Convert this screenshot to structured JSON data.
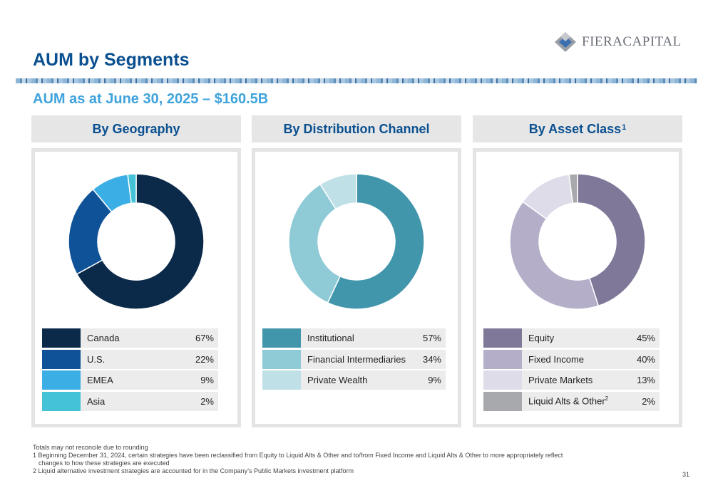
{
  "logo": {
    "text": "FIERACAPITAL"
  },
  "header": {
    "title": "AUM by Segments",
    "subtitle": "AUM as at June 30, 2025 – $160.5B"
  },
  "panels": [
    {
      "title": "By Geography",
      "sup": ""
    },
    {
      "title": "By Distribution Channel",
      "sup": ""
    },
    {
      "title": "By Asset Class",
      "sup": "1"
    }
  ],
  "chart_data": [
    {
      "type": "pie",
      "title": "By Geography",
      "categories": [
        "Canada",
        "U.S.",
        "EMEA",
        "Asia"
      ],
      "values": [
        67,
        22,
        9,
        2
      ],
      "labels": [
        "67%",
        "22%",
        "9%",
        "2%"
      ],
      "colors": [
        "#0b2a4a",
        "#0f5298",
        "#3baee6",
        "#45c3d6"
      ]
    },
    {
      "type": "pie",
      "title": "By Distribution Channel",
      "categories": [
        "Institutional",
        "Financial Intermediaries",
        "Private Wealth"
      ],
      "values": [
        57,
        34,
        9
      ],
      "labels": [
        "57%",
        "34%",
        "9%"
      ],
      "colors": [
        "#4196ac",
        "#8fcbd6",
        "#bfe0e6"
      ]
    },
    {
      "type": "pie",
      "title": "By Asset Class",
      "categories": [
        "Equity",
        "Fixed Income",
        "Private Markets",
        "Liquid Alts & Other"
      ],
      "category_sups": [
        "",
        "",
        "",
        "2"
      ],
      "values": [
        45,
        40,
        13,
        2
      ],
      "labels": [
        "45%",
        "40%",
        "13%",
        "2%"
      ],
      "colors": [
        "#7f7899",
        "#b4aec8",
        "#dedce9",
        "#a8a9ad"
      ]
    }
  ],
  "footnotes": [
    "Totals may not reconcile due to rounding",
    "1 Beginning December 31, 2024, certain strategies have been reclassified from Equity to Liquid Alts & Other and to/from Fixed Income and Liquid Alts & Other to more appropriately reflect",
    "changes to how these strategies are executed",
    "2 Liquid alternative investment strategies are accounted for in the Company’s Public Markets investment platform"
  ],
  "page_number": "31"
}
